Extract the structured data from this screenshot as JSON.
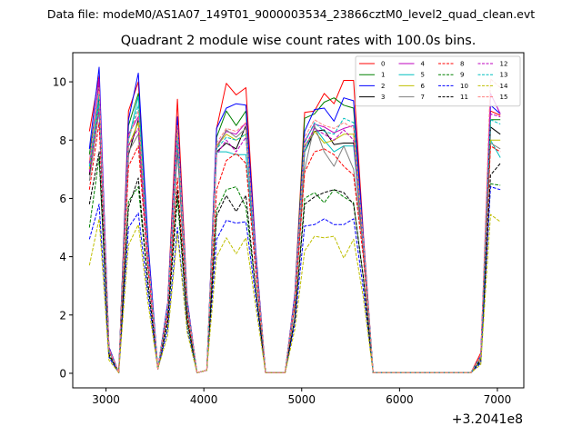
{
  "chart_data": {
    "type": "line",
    "suptitle": "Data file: modeM0/AS1A07_149T01_9000003534_23866cztM0_level2_quad_clean.evt",
    "title": "Quadrant 2 module wise count rates with 100.0s bins.",
    "xlabel": "",
    "ylabel": "",
    "x_offset_label": "+3.2041e8",
    "xlim": [
      2660,
      7270
    ],
    "ylim": [
      -0.5,
      11.0
    ],
    "x_ticks": [
      3000,
      4000,
      5000,
      6000,
      7000
    ],
    "y_ticks": [
      0,
      2,
      4,
      6,
      8,
      10
    ],
    "grid": false,
    "legend_position": "upper right",
    "legend_columns": 4,
    "x": [
      2830,
      2930,
      3030,
      3130,
      3230,
      3330,
      3430,
      3530,
      3630,
      3730,
      3830,
      3930,
      4030,
      4130,
      4230,
      4330,
      4430,
      4530,
      4630,
      4730,
      4830,
      4930,
      5030,
      5130,
      5230,
      5330,
      5430,
      5530,
      5630,
      5730,
      5830,
      5930,
      6030,
      6130,
      6230,
      6330,
      6430,
      6530,
      6630,
      6730,
      6830,
      6930,
      7030
    ],
    "series": [
      {
        "name": "0",
        "color": "#ff0000",
        "dash": "solid",
        "values": [
          8.3,
          10.2,
          0.9,
          0.02,
          9.0,
          10.0,
          4.4,
          0.15,
          2.4,
          9.4,
          2.5,
          0.02,
          0.1,
          8.4,
          9.95,
          9.55,
          9.8,
          4.2,
          0.02,
          0.02,
          0.02,
          2.7,
          8.95,
          9.0,
          9.6,
          9.25,
          10.05,
          10.05,
          4.8,
          0.02,
          0.02,
          0.02,
          0.02,
          0.02,
          0.02,
          0.02,
          0.02,
          0.02,
          0.02,
          0.02,
          0.7,
          9.0,
          8.85
        ]
      },
      {
        "name": "1",
        "color": "#008000",
        "dash": "solid",
        "values": [
          7.5,
          9.9,
          0.85,
          0.02,
          8.5,
          9.6,
          4.2,
          0.15,
          2.3,
          8.6,
          2.4,
          0.02,
          0.1,
          8.1,
          9.0,
          8.5,
          9.0,
          4.0,
          0.02,
          0.02,
          0.02,
          2.6,
          8.75,
          8.9,
          9.3,
          9.45,
          9.2,
          9.1,
          4.6,
          0.02,
          0.02,
          0.02,
          0.02,
          0.02,
          0.02,
          0.02,
          0.02,
          0.02,
          0.02,
          0.02,
          0.6,
          8.7,
          8.7
        ]
      },
      {
        "name": "2",
        "color": "#0000ff",
        "dash": "solid",
        "values": [
          7.7,
          10.5,
          0.9,
          0.02,
          8.7,
          10.3,
          4.5,
          0.15,
          2.4,
          8.8,
          2.5,
          0.02,
          0.1,
          8.4,
          9.1,
          9.25,
          9.2,
          4.2,
          0.02,
          0.02,
          0.02,
          2.7,
          8.3,
          9.05,
          9.1,
          8.65,
          9.45,
          9.35,
          4.7,
          0.02,
          0.02,
          0.02,
          0.02,
          0.02,
          0.02,
          0.02,
          0.02,
          0.02,
          0.02,
          0.02,
          0.6,
          9.2,
          8.9
        ]
      },
      {
        "name": "3",
        "color": "#000000",
        "dash": "solid",
        "values": [
          6.8,
          9.5,
          0.8,
          0.02,
          7.5,
          8.7,
          3.9,
          0.15,
          2.1,
          7.7,
          2.2,
          0.02,
          0.1,
          7.6,
          7.9,
          7.7,
          8.5,
          3.8,
          0.02,
          0.02,
          0.02,
          2.4,
          7.6,
          8.3,
          8.35,
          7.85,
          7.9,
          7.9,
          4.2,
          0.02,
          0.02,
          0.02,
          0.02,
          0.02,
          0.02,
          0.02,
          0.02,
          0.02,
          0.02,
          0.02,
          0.55,
          8.45,
          8.2
        ]
      },
      {
        "name": "4",
        "color": "#bf00bf",
        "dash": "solid",
        "values": [
          7.2,
          10.1,
          0.85,
          0.02,
          8.2,
          8.8,
          4.1,
          0.15,
          2.2,
          8.2,
          2.3,
          0.02,
          0.1,
          7.8,
          8.3,
          8.2,
          8.6,
          3.9,
          0.02,
          0.02,
          0.02,
          2.5,
          7.95,
          8.55,
          8.45,
          8.25,
          8.4,
          8.5,
          4.5,
          0.02,
          0.02,
          0.02,
          0.02,
          0.02,
          0.02,
          0.02,
          0.02,
          0.02,
          0.02,
          0.02,
          0.55,
          9.6,
          8.9
        ]
      },
      {
        "name": "5",
        "color": "#00bfbf",
        "dash": "solid",
        "values": [
          7.0,
          9.6,
          0.8,
          0.02,
          8.0,
          9.5,
          4.0,
          0.15,
          2.2,
          8.0,
          2.3,
          0.02,
          0.1,
          7.6,
          7.6,
          7.5,
          7.5,
          3.8,
          0.02,
          0.02,
          0.02,
          2.5,
          7.6,
          8.45,
          8.0,
          7.6,
          7.8,
          7.8,
          4.4,
          0.02,
          0.02,
          0.02,
          0.02,
          0.02,
          0.02,
          0.02,
          0.02,
          0.02,
          0.02,
          0.02,
          0.55,
          8.0,
          7.4
        ]
      },
      {
        "name": "6",
        "color": "#bfbf00",
        "dash": "solid",
        "values": [
          7.0,
          9.2,
          0.8,
          0.02,
          7.8,
          8.6,
          3.9,
          0.15,
          2.1,
          8.3,
          2.3,
          0.02,
          0.1,
          7.8,
          8.2,
          8.0,
          8.2,
          3.9,
          0.02,
          0.02,
          0.02,
          2.5,
          7.8,
          8.3,
          7.9,
          8.0,
          8.2,
          8.2,
          4.4,
          0.02,
          0.02,
          0.02,
          0.02,
          0.02,
          0.02,
          0.02,
          0.02,
          0.02,
          0.02,
          0.02,
          0.5,
          8.0,
          8.0
        ]
      },
      {
        "name": "7",
        "color": "#808080",
        "dash": "solid",
        "values": [
          6.6,
          9.0,
          0.8,
          0.02,
          7.6,
          8.2,
          3.8,
          0.15,
          2.1,
          7.8,
          2.2,
          0.02,
          0.1,
          7.7,
          8.35,
          8.1,
          8.4,
          3.8,
          0.02,
          0.02,
          0.02,
          2.4,
          7.0,
          8.5,
          7.6,
          7.1,
          7.8,
          7.0,
          4.3,
          0.02,
          0.02,
          0.02,
          0.02,
          0.02,
          0.02,
          0.02,
          0.02,
          0.02,
          0.02,
          0.02,
          0.55,
          7.9,
          7.7
        ]
      },
      {
        "name": "8",
        "color": "#ff0000",
        "dash": "dashed",
        "values": [
          6.3,
          8.6,
          0.75,
          0.02,
          7.1,
          7.8,
          3.6,
          0.15,
          2.0,
          6.7,
          2.0,
          0.02,
          0.1,
          6.3,
          7.3,
          7.55,
          7.2,
          3.5,
          0.02,
          0.02,
          0.02,
          2.3,
          6.9,
          7.6,
          7.7,
          7.5,
          7.1,
          6.8,
          4.0,
          0.02,
          0.02,
          0.02,
          0.02,
          0.02,
          0.02,
          0.02,
          0.02,
          0.02,
          0.02,
          0.02,
          0.5,
          7.8,
          7.6
        ]
      },
      {
        "name": "9",
        "color": "#008000",
        "dash": "dashed",
        "values": [
          5.0,
          7.4,
          0.6,
          0.02,
          5.9,
          6.4,
          3.0,
          0.15,
          1.7,
          6.0,
          1.7,
          0.02,
          0.1,
          5.6,
          6.3,
          6.4,
          5.7,
          2.9,
          0.02,
          0.02,
          0.02,
          1.9,
          6.0,
          6.2,
          5.85,
          6.3,
          6.05,
          5.85,
          3.3,
          0.02,
          0.02,
          0.02,
          0.02,
          0.02,
          0.02,
          0.02,
          0.02,
          0.02,
          0.02,
          0.02,
          0.4,
          6.5,
          6.45
        ]
      },
      {
        "name": "10",
        "color": "#0000ff",
        "dash": "dashed",
        "values": [
          4.6,
          5.8,
          0.55,
          0.02,
          5.0,
          5.5,
          2.7,
          0.15,
          1.5,
          5.0,
          1.5,
          0.02,
          0.1,
          4.6,
          5.25,
          5.15,
          5.2,
          2.6,
          0.02,
          0.02,
          0.02,
          1.7,
          5.05,
          5.1,
          5.3,
          5.1,
          5.1,
          5.3,
          2.9,
          0.02,
          0.02,
          0.02,
          0.02,
          0.02,
          0.02,
          0.02,
          0.02,
          0.02,
          0.02,
          0.02,
          0.35,
          6.4,
          6.3
        ]
      },
      {
        "name": "11",
        "color": "#000000",
        "dash": "dashed",
        "values": [
          5.8,
          7.6,
          0.65,
          0.02,
          5.7,
          6.7,
          3.1,
          0.15,
          1.8,
          6.3,
          1.8,
          0.02,
          0.1,
          5.4,
          6.1,
          5.55,
          6.1,
          2.9,
          0.02,
          0.02,
          0.02,
          1.9,
          5.8,
          6.05,
          6.2,
          6.3,
          6.2,
          5.8,
          3.3,
          0.02,
          0.02,
          0.02,
          0.02,
          0.02,
          0.02,
          0.02,
          0.02,
          0.02,
          0.02,
          0.02,
          0.45,
          6.8,
          7.2
        ]
      },
      {
        "name": "12",
        "color": "#bf00bf",
        "dash": "dashed",
        "values": [
          6.9,
          9.1,
          0.8,
          0.02,
          7.8,
          8.4,
          3.9,
          0.15,
          2.2,
          8.0,
          2.3,
          0.02,
          0.1,
          7.5,
          8.0,
          7.6,
          8.1,
          3.8,
          0.02,
          0.02,
          0.02,
          2.5,
          7.75,
          8.4,
          8.2,
          8.0,
          8.35,
          8.0,
          4.4,
          0.02,
          0.02,
          0.02,
          0.02,
          0.02,
          0.02,
          0.02,
          0.02,
          0.02,
          0.02,
          0.02,
          0.55,
          8.9,
          8.8
        ]
      },
      {
        "name": "13",
        "color": "#00bfbf",
        "dash": "dashed",
        "values": [
          7.1,
          9.3,
          0.8,
          0.02,
          8.0,
          9.2,
          4.0,
          0.15,
          2.2,
          8.1,
          2.3,
          0.02,
          0.1,
          7.7,
          8.1,
          8.0,
          8.2,
          3.9,
          0.02,
          0.02,
          0.02,
          2.5,
          7.9,
          8.6,
          8.3,
          8.2,
          8.75,
          8.6,
          4.5,
          0.02,
          0.02,
          0.02,
          0.02,
          0.02,
          0.02,
          0.02,
          0.02,
          0.02,
          0.02,
          0.02,
          0.55,
          8.7,
          8.55
        ]
      },
      {
        "name": "14",
        "color": "#bfbf00",
        "dash": "dashed",
        "values": [
          3.7,
          5.3,
          0.45,
          0.02,
          4.4,
          5.1,
          2.4,
          0.15,
          1.3,
          4.8,
          1.4,
          0.02,
          0.1,
          4.0,
          4.65,
          4.1,
          4.65,
          2.3,
          0.02,
          0.02,
          0.02,
          1.5,
          4.2,
          4.7,
          4.65,
          4.7,
          3.95,
          4.6,
          2.6,
          0.02,
          0.02,
          0.02,
          0.02,
          0.02,
          0.02,
          0.02,
          0.02,
          0.02,
          0.02,
          0.02,
          0.3,
          5.45,
          5.2
        ]
      },
      {
        "name": "15",
        "color": "#ff8080",
        "dash": "dashed",
        "values": [
          7.3,
          9.8,
          0.85,
          0.02,
          8.1,
          9.0,
          4.1,
          0.15,
          2.3,
          8.5,
          2.4,
          0.02,
          0.1,
          7.9,
          8.4,
          8.3,
          8.6,
          4.0,
          0.02,
          0.02,
          0.02,
          2.6,
          8.1,
          8.7,
          8.5,
          8.4,
          8.6,
          8.4,
          4.6,
          0.02,
          0.02,
          0.02,
          0.02,
          0.02,
          0.02,
          0.02,
          0.02,
          0.02,
          0.02,
          0.02,
          0.6,
          10.1,
          9.8
        ]
      }
    ]
  }
}
